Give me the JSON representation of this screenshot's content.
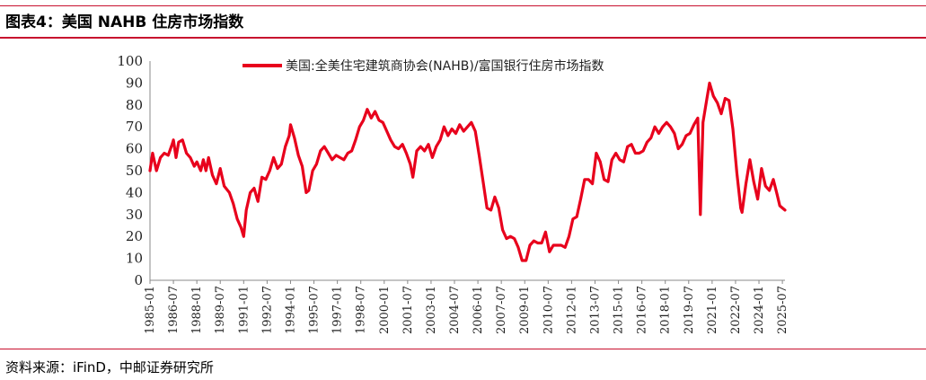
{
  "figure": {
    "title": "图表4：美国 NAHB 住房市场指数",
    "source": "资料来源：iFinD，中邮证券研究所"
  },
  "chart_data": {
    "type": "line",
    "title": "",
    "xlabel": "",
    "ylabel": "",
    "ylim": [
      0,
      100
    ],
    "yticks": [
      0,
      10,
      20,
      30,
      40,
      50,
      60,
      70,
      80,
      90,
      100
    ],
    "xticks": [
      "1985-01",
      "1986-07",
      "1988-01",
      "1989-07",
      "1991-01",
      "1992-07",
      "1994-01",
      "1995-07",
      "1997-01",
      "1998-07",
      "2000-01",
      "2001-07",
      "2003-01",
      "2004-07",
      "2006-01",
      "2007-07",
      "2009-01",
      "2010-07",
      "2012-01",
      "2013-07",
      "2015-01",
      "2016-07",
      "2018-01",
      "2019-07",
      "2021-01",
      "2022-07",
      "2024-01",
      "2025-07"
    ],
    "grid": false,
    "legend_position": "top-center",
    "color": "#e8001c",
    "series": [
      {
        "name": "美国:全美住宅建筑商协会(NAHB)/富国银行住房市场指数",
        "points": [
          [
            "1985-01",
            50
          ],
          [
            "1985-03",
            58
          ],
          [
            "1985-06",
            50
          ],
          [
            "1985-09",
            56
          ],
          [
            "1985-12",
            58
          ],
          [
            "1986-03",
            57
          ],
          [
            "1986-06",
            62
          ],
          [
            "1986-07",
            64
          ],
          [
            "1986-09",
            56
          ],
          [
            "1986-11",
            63
          ],
          [
            "1987-02",
            64
          ],
          [
            "1987-05",
            58
          ],
          [
            "1987-08",
            56
          ],
          [
            "1987-11",
            52
          ],
          [
            "1988-01",
            54
          ],
          [
            "1988-04",
            50
          ],
          [
            "1988-06",
            55
          ],
          [
            "1988-08",
            50
          ],
          [
            "1988-10",
            56
          ],
          [
            "1989-01",
            48
          ],
          [
            "1989-04",
            44
          ],
          [
            "1989-07",
            51
          ],
          [
            "1989-10",
            43
          ],
          [
            "1990-02",
            40
          ],
          [
            "1990-05",
            35
          ],
          [
            "1990-08",
            28
          ],
          [
            "1990-11",
            24
          ],
          [
            "1991-01",
            20
          ],
          [
            "1991-03",
            32
          ],
          [
            "1991-06",
            40
          ],
          [
            "1991-09",
            42
          ],
          [
            "1991-12",
            36
          ],
          [
            "1992-03",
            47
          ],
          [
            "1992-06",
            46
          ],
          [
            "1992-09",
            50
          ],
          [
            "1992-12",
            56
          ],
          [
            "1993-03",
            51
          ],
          [
            "1993-06",
            53
          ],
          [
            "1993-09",
            61
          ],
          [
            "1993-12",
            66
          ],
          [
            "1994-01",
            71
          ],
          [
            "1994-04",
            65
          ],
          [
            "1994-07",
            57
          ],
          [
            "1994-10",
            52
          ],
          [
            "1995-01",
            40
          ],
          [
            "1995-03",
            41
          ],
          [
            "1995-06",
            50
          ],
          [
            "1995-09",
            53
          ],
          [
            "1995-12",
            59
          ],
          [
            "1996-03",
            61
          ],
          [
            "1996-06",
            58
          ],
          [
            "1996-09",
            55
          ],
          [
            "1996-12",
            57
          ],
          [
            "1997-03",
            56
          ],
          [
            "1997-06",
            55
          ],
          [
            "1997-09",
            58
          ],
          [
            "1997-12",
            59
          ],
          [
            "1998-03",
            64
          ],
          [
            "1998-06",
            70
          ],
          [
            "1998-09",
            73
          ],
          [
            "1998-12",
            78
          ],
          [
            "1999-03",
            74
          ],
          [
            "1999-06",
            77
          ],
          [
            "1999-09",
            73
          ],
          [
            "1999-12",
            72
          ],
          [
            "2000-03",
            68
          ],
          [
            "2000-06",
            64
          ],
          [
            "2000-09",
            61
          ],
          [
            "2000-12",
            60
          ],
          [
            "2001-03",
            62
          ],
          [
            "2001-06",
            58
          ],
          [
            "2001-09",
            53
          ],
          [
            "2001-11",
            47
          ],
          [
            "2002-02",
            59
          ],
          [
            "2002-05",
            61
          ],
          [
            "2002-08",
            59
          ],
          [
            "2002-11",
            62
          ],
          [
            "2003-02",
            56
          ],
          [
            "2003-05",
            61
          ],
          [
            "2003-08",
            64
          ],
          [
            "2003-11",
            70
          ],
          [
            "2004-02",
            66
          ],
          [
            "2004-05",
            69
          ],
          [
            "2004-08",
            67
          ],
          [
            "2004-11",
            71
          ],
          [
            "2005-02",
            68
          ],
          [
            "2005-05",
            70
          ],
          [
            "2005-08",
            72
          ],
          [
            "2005-11",
            68
          ],
          [
            "2006-02",
            57
          ],
          [
            "2006-05",
            45
          ],
          [
            "2006-08",
            33
          ],
          [
            "2006-11",
            32
          ],
          [
            "2007-02",
            38
          ],
          [
            "2007-05",
            33
          ],
          [
            "2007-08",
            23
          ],
          [
            "2007-11",
            19
          ],
          [
            "2008-02",
            20
          ],
          [
            "2008-05",
            19
          ],
          [
            "2008-08",
            15
          ],
          [
            "2008-11",
            9
          ],
          [
            "2009-02",
            9
          ],
          [
            "2009-05",
            16
          ],
          [
            "2009-08",
            18
          ],
          [
            "2009-11",
            17
          ],
          [
            "2010-02",
            17
          ],
          [
            "2010-05",
            22
          ],
          [
            "2010-08",
            13
          ],
          [
            "2010-11",
            16
          ],
          [
            "2011-02",
            16
          ],
          [
            "2011-05",
            16
          ],
          [
            "2011-08",
            15
          ],
          [
            "2011-11",
            20
          ],
          [
            "2012-02",
            28
          ],
          [
            "2012-05",
            29
          ],
          [
            "2012-08",
            37
          ],
          [
            "2012-11",
            46
          ],
          [
            "2013-02",
            46
          ],
          [
            "2013-05",
            44
          ],
          [
            "2013-08",
            58
          ],
          [
            "2013-11",
            54
          ],
          [
            "2014-02",
            46
          ],
          [
            "2014-05",
            45
          ],
          [
            "2014-08",
            55
          ],
          [
            "2014-11",
            58
          ],
          [
            "2015-02",
            55
          ],
          [
            "2015-05",
            54
          ],
          [
            "2015-08",
            61
          ],
          [
            "2015-11",
            62
          ],
          [
            "2016-02",
            58
          ],
          [
            "2016-05",
            58
          ],
          [
            "2016-08",
            59
          ],
          [
            "2016-11",
            63
          ],
          [
            "2017-02",
            65
          ],
          [
            "2017-05",
            70
          ],
          [
            "2017-08",
            67
          ],
          [
            "2017-11",
            70
          ],
          [
            "2018-02",
            72
          ],
          [
            "2018-05",
            70
          ],
          [
            "2018-08",
            67
          ],
          [
            "2018-11",
            60
          ],
          [
            "2019-02",
            62
          ],
          [
            "2019-05",
            66
          ],
          [
            "2019-08",
            67
          ],
          [
            "2019-11",
            71
          ],
          [
            "2020-02",
            74
          ],
          [
            "2020-04",
            30
          ],
          [
            "2020-06",
            72
          ],
          [
            "2020-09",
            83
          ],
          [
            "2020-11",
            90
          ],
          [
            "2021-02",
            84
          ],
          [
            "2021-05",
            81
          ],
          [
            "2021-08",
            76
          ],
          [
            "2021-11",
            83
          ],
          [
            "2022-02",
            82
          ],
          [
            "2022-05",
            69
          ],
          [
            "2022-08",
            49
          ],
          [
            "2022-11",
            33
          ],
          [
            "2022-12",
            31
          ],
          [
            "2023-03",
            44
          ],
          [
            "2023-06",
            55
          ],
          [
            "2023-09",
            45
          ],
          [
            "2023-12",
            37
          ],
          [
            "2024-03",
            51
          ],
          [
            "2024-06",
            43
          ],
          [
            "2024-09",
            41
          ],
          [
            "2024-12",
            46
          ],
          [
            "2025-03",
            39
          ],
          [
            "2025-05",
            34
          ],
          [
            "2025-07",
            33
          ],
          [
            "2025-09",
            32
          ]
        ]
      }
    ]
  }
}
